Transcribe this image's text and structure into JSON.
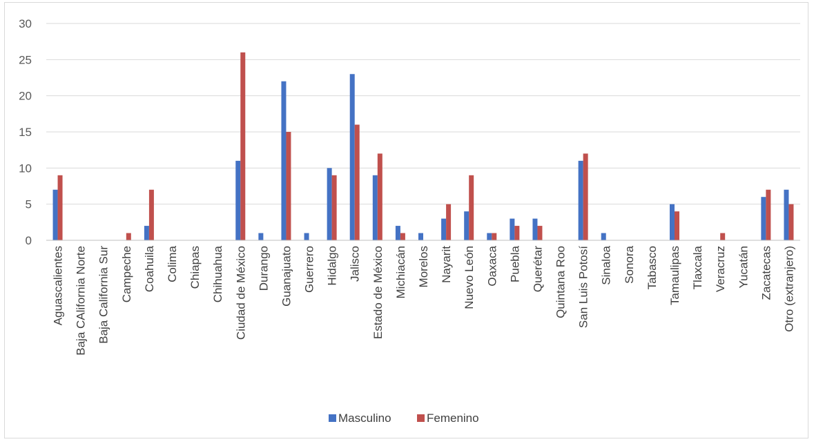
{
  "chart_data": {
    "type": "bar",
    "categories": [
      "Aguascalientes",
      "Baja CAlifornia Norte",
      "Baja California Sur",
      "Campeche",
      "Coahuila",
      "Colima",
      "Chiapas",
      "Chihuahua",
      "Ciudad de México",
      "Durango",
      "Guanajuato",
      "Guerrero",
      "Hidalgo",
      "Jalisco",
      "Estado de México",
      "Michiacán",
      "Morelos",
      "Nayarit",
      "Nuevo León",
      "Oaxaca",
      "Puebla",
      "Querétar",
      "Quintana Roo",
      "San Luis Potosí",
      "Sinaloa",
      "Sonora",
      "Tabasco",
      "Tamaulipas",
      "Tlaxcala",
      "Veracruz",
      "Yucatán",
      "Zacatecas",
      "Otro (extranjero)"
    ],
    "series": [
      {
        "name": "Masculino",
        "color": "#4472c4",
        "values": [
          7,
          0,
          0,
          0,
          2,
          0,
          0,
          0,
          11,
          1,
          22,
          1,
          10,
          23,
          9,
          2,
          1,
          3,
          4,
          1,
          3,
          3,
          0,
          11,
          1,
          0,
          0,
          5,
          0,
          0,
          0,
          6,
          7
        ]
      },
      {
        "name": "Femenino",
        "color": "#c0504d",
        "values": [
          9,
          0,
          0,
          1,
          7,
          0,
          0,
          0,
          26,
          0,
          15,
          0,
          9,
          16,
          12,
          1,
          0,
          5,
          9,
          1,
          2,
          2,
          0,
          12,
          0,
          0,
          0,
          4,
          0,
          1,
          0,
          7,
          5
        ]
      }
    ],
    "yticks": [
      "0",
      "5",
      "10",
      "15",
      "20",
      "25",
      "30"
    ],
    "ylim": [
      0,
      30
    ],
    "title": "",
    "xlabel": "",
    "ylabel": "",
    "grid": true,
    "legend_position": "bottom"
  }
}
